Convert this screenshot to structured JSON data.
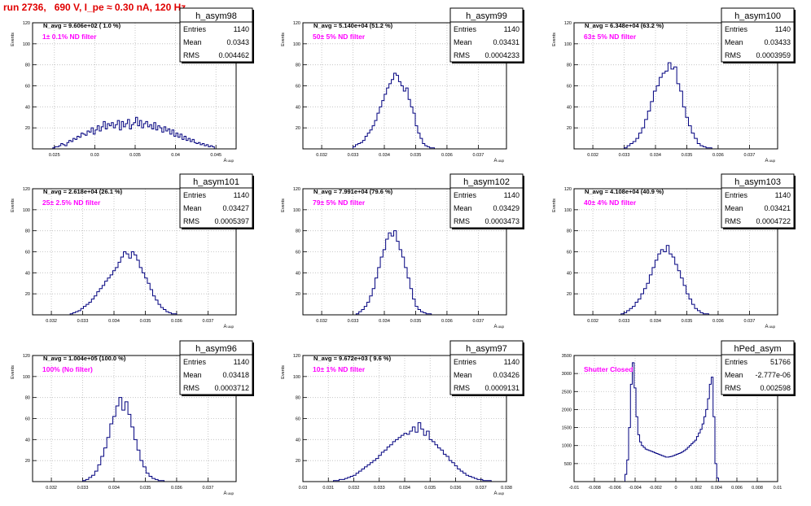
{
  "page": {
    "title": "run 2736,   690 V, I_pe ≈ 0.30 nA, 120 Hz"
  },
  "colors": {
    "hist": "#00007f",
    "annotation": "#ff00ff",
    "title": "#e00000",
    "grid": "#bbbbbb"
  },
  "chart_data": [
    {
      "type": "bar",
      "name": "h_asym98",
      "nlabel": "N_avg = 9.606e+02 ( 1.0 %)",
      "filter": "1± 0.1% ND filter",
      "stats": {
        "entries": "1140",
        "mean": "0.0343",
        "rms": "0.004462"
      },
      "xlim": [
        0.0223,
        0.0475
      ],
      "ylim": [
        0,
        120
      ],
      "xticks": [
        "0.025",
        "0.03",
        "0.035",
        "0.04",
        "0.045"
      ],
      "yticks": [
        "20",
        "40",
        "60",
        "80",
        "100",
        "120"
      ],
      "ylabel": "Events",
      "xlabel": "A_uup",
      "hist": {
        "lo": 0.0248,
        "hi": 0.0448,
        "counts": [
          1,
          2,
          2,
          3,
          5,
          4,
          3,
          6,
          8,
          7,
          10,
          9,
          12,
          11,
          15,
          14,
          13,
          17,
          16,
          20,
          14,
          18,
          22,
          17,
          21,
          26,
          19,
          24,
          22,
          25,
          20,
          23,
          27,
          18,
          26,
          21,
          24,
          28,
          19,
          23,
          25,
          30,
          22,
          27,
          20,
          24,
          26,
          21,
          23,
          19,
          25,
          18,
          22,
          20,
          16,
          21,
          17,
          19,
          14,
          18,
          12,
          15,
          11,
          14,
          9,
          12,
          8,
          10,
          7,
          9,
          6,
          5,
          6,
          4,
          5,
          3,
          4,
          2,
          3,
          2
        ]
      }
    },
    {
      "type": "bar",
      "name": "h_asym99",
      "nlabel": "N_avg = 5.140e+04 (51.2 %)",
      "filter": "50± 5% ND filter",
      "stats": {
        "entries": "1140",
        "mean": "0.03431",
        "rms": "0.0004233"
      },
      "xlim": [
        0.0314,
        0.0379
      ],
      "ylim": [
        0,
        120
      ],
      "xticks": [
        "0.032",
        "0.033",
        "0.034",
        "0.035",
        "0.036",
        "0.037"
      ],
      "yticks": [
        "20",
        "40",
        "60",
        "80",
        "100",
        "120"
      ],
      "ylabel": "Events",
      "xlabel": "A_uup",
      "hist": {
        "lo": 0.033,
        "hi": 0.0356,
        "counts": [
          2,
          4,
          5,
          6,
          8,
          12,
          15,
          18,
          22,
          27,
          34,
          40,
          46,
          52,
          58,
          62,
          66,
          72,
          70,
          64,
          60,
          55,
          58,
          47,
          40,
          34,
          22,
          15,
          10,
          5,
          3,
          2,
          1,
          1
        ]
      }
    },
    {
      "type": "bar",
      "name": "h_asym100",
      "nlabel": "N_avg = 6.348e+04 (63.2 %)",
      "filter": "63± 5% ND filter",
      "stats": {
        "entries": "1140",
        "mean": "0.03433",
        "rms": "0.0003959"
      },
      "xlim": [
        0.0314,
        0.0379
      ],
      "ylim": [
        0,
        120
      ],
      "xticks": [
        "0.032",
        "0.033",
        "0.034",
        "0.035",
        "0.036",
        "0.037"
      ],
      "yticks": [
        "20",
        "40",
        "60",
        "80",
        "100",
        "120"
      ],
      "ylabel": "Events",
      "xlabel": "A_uup",
      "hist": {
        "lo": 0.033,
        "hi": 0.0358,
        "counts": [
          1,
          3,
          5,
          7,
          10,
          15,
          20,
          28,
          36,
          45,
          55,
          60,
          68,
          72,
          74,
          82,
          76,
          78,
          62,
          55,
          40,
          30,
          22,
          15,
          10,
          5,
          3,
          2,
          1,
          1
        ]
      }
    },
    {
      "type": "bar",
      "name": "h_asym101",
      "nlabel": "N_avg = 2.618e+04 (26.1 %)",
      "filter": "25± 2.5% ND filter",
      "stats": {
        "entries": "1140",
        "mean": "0.03427",
        "rms": "0.0005397"
      },
      "xlim": [
        0.0314,
        0.0379
      ],
      "ylim": [
        0,
        120
      ],
      "xticks": [
        "0.032",
        "0.033",
        "0.034",
        "0.035",
        "0.036",
        "0.037"
      ],
      "yticks": [
        "20",
        "40",
        "60",
        "80",
        "100",
        "120"
      ],
      "ylabel": "Events",
      "xlabel": "A_uup",
      "hist": {
        "lo": 0.0326,
        "hi": 0.036,
        "counts": [
          1,
          2,
          3,
          4,
          6,
          8,
          10,
          12,
          15,
          18,
          22,
          25,
          28,
          32,
          35,
          38,
          42,
          45,
          50,
          55,
          60,
          58,
          54,
          60,
          57,
          52,
          45,
          40,
          35,
          30,
          24,
          18,
          14,
          10,
          7,
          5,
          3,
          2,
          1,
          1
        ]
      }
    },
    {
      "type": "bar",
      "name": "h_asym102",
      "nlabel": "N_avg = 7.991e+04 (79.6 %)",
      "filter": "79± 5% ND filter",
      "stats": {
        "entries": "1140",
        "mean": "0.03429",
        "rms": "0.0003473"
      },
      "xlim": [
        0.0314,
        0.0379
      ],
      "ylim": [
        0,
        120
      ],
      "xticks": [
        "0.032",
        "0.033",
        "0.034",
        "0.035",
        "0.036",
        "0.037"
      ],
      "yticks": [
        "20",
        "40",
        "60",
        "80",
        "100",
        "120"
      ],
      "ylabel": "Events",
      "xlabel": "A_uup",
      "hist": {
        "lo": 0.0331,
        "hi": 0.0355,
        "counts": [
          1,
          3,
          5,
          8,
          12,
          18,
          25,
          35,
          45,
          55,
          62,
          72,
          78,
          75,
          80,
          70,
          62,
          55,
          45,
          35,
          25,
          15,
          8,
          5,
          3,
          2,
          1,
          1
        ]
      }
    },
    {
      "type": "bar",
      "name": "h_asym103",
      "nlabel": "N_avg = 4.108e+04 (40.9 %)",
      "filter": "40± 4% ND filter",
      "stats": {
        "entries": "1140",
        "mean": "0.03421",
        "rms": "0.0004722"
      },
      "xlim": [
        0.0314,
        0.0379
      ],
      "ylim": [
        0,
        120
      ],
      "xticks": [
        "0.032",
        "0.033",
        "0.034",
        "0.035",
        "0.036",
        "0.037"
      ],
      "yticks": [
        "20",
        "40",
        "60",
        "80",
        "100",
        "120"
      ],
      "ylabel": "Events",
      "xlabel": "A_uup",
      "hist": {
        "lo": 0.0329,
        "hi": 0.0357,
        "counts": [
          1,
          2,
          4,
          6,
          8,
          12,
          15,
          20,
          25,
          30,
          38,
          45,
          52,
          58,
          62,
          60,
          66,
          58,
          55,
          48,
          42,
          35,
          28,
          20,
          15,
          10,
          6,
          4,
          2,
          1,
          1
        ]
      }
    },
    {
      "type": "bar",
      "name": "h_asym96",
      "nlabel": "N_avg = 1.004e+05 (100.0 %)",
      "filter": "100% (No filter)",
      "stats": {
        "entries": "1140",
        "mean": "0.03418",
        "rms": "0.0003712"
      },
      "xlim": [
        0.0314,
        0.0379
      ],
      "ylim": [
        0,
        120
      ],
      "xticks": [
        "0.032",
        "0.033",
        "0.034",
        "0.035",
        "0.036",
        "0.037"
      ],
      "yticks": [
        "20",
        "40",
        "60",
        "80",
        "100",
        "120"
      ],
      "ylabel": "Events",
      "xlabel": "A_uup",
      "hist": {
        "lo": 0.033,
        "hi": 0.0356,
        "counts": [
          1,
          2,
          4,
          6,
          10,
          16,
          24,
          32,
          42,
          55,
          62,
          72,
          80,
          68,
          76,
          64,
          52,
          40,
          30,
          20,
          14,
          8,
          5,
          3,
          2,
          1,
          1
        ]
      }
    },
    {
      "type": "bar",
      "name": "h_asym97",
      "nlabel": "N_avg = 9.672e+03 ( 9.6 %)",
      "filter": "10± 1% ND filter",
      "stats": {
        "entries": "1140",
        "mean": "0.03426",
        "rms": "0.0009131"
      },
      "xlim": [
        0.03,
        0.038
      ],
      "ylim": [
        0,
        120
      ],
      "xticks": [
        "0.03",
        "0.031",
        "0.032",
        "0.033",
        "0.034",
        "0.035",
        "0.036",
        "0.037",
        "0.038"
      ],
      "yticks": [
        "20",
        "40",
        "60",
        "80",
        "100",
        "120"
      ],
      "ylabel": "Events",
      "xlabel": "A_uup",
      "hist": {
        "lo": 0.0312,
        "hi": 0.0374,
        "counts": [
          1,
          1,
          2,
          2,
          3,
          4,
          5,
          6,
          8,
          10,
          12,
          14,
          16,
          18,
          20,
          22,
          25,
          28,
          30,
          33,
          35,
          38,
          40,
          42,
          44,
          46,
          45,
          48,
          52,
          47,
          56,
          50,
          44,
          48,
          40,
          38,
          35,
          32,
          30,
          26,
          24,
          20,
          18,
          15,
          12,
          10,
          8,
          6,
          5,
          4,
          3,
          2,
          2,
          1,
          1,
          1
        ]
      }
    },
    {
      "type": "bar",
      "name": "hPed_asym",
      "nlabel": "",
      "filter": "Shutter Closed",
      "stats": {
        "entries": "51766",
        "mean": "-2.777e-06",
        "rms": "0.002598"
      },
      "xlim": [
        -0.01,
        0.01
      ],
      "ylim": [
        0,
        3500
      ],
      "xticks": [
        "-0.01",
        "-0.008",
        "-0.006",
        "-0.004",
        "-0.002",
        "0",
        "0.002",
        "0.004",
        "0.006",
        "0.008",
        "0.01"
      ],
      "yticks": [
        "500",
        "1000",
        "1500",
        "2000",
        "2500",
        "3000",
        "3500"
      ],
      "ylabel": "",
      "xlabel": "",
      "hist": {
        "lo": -0.005,
        "hi": 0.0042,
        "counts": [
          200,
          600,
          1500,
          2700,
          3300,
          2600,
          1800,
          1300,
          1100,
          1000,
          950,
          900,
          880,
          860,
          840,
          820,
          800,
          780,
          760,
          740,
          720,
          700,
          680,
          680,
          690,
          700,
          720,
          740,
          760,
          780,
          800,
          830,
          860,
          900,
          950,
          1000,
          1050,
          1100,
          1150,
          1250,
          1350,
          1450,
          1600,
          1800,
          2000,
          2300,
          2700,
          2900,
          1800,
          500,
          100
        ]
      }
    }
  ]
}
